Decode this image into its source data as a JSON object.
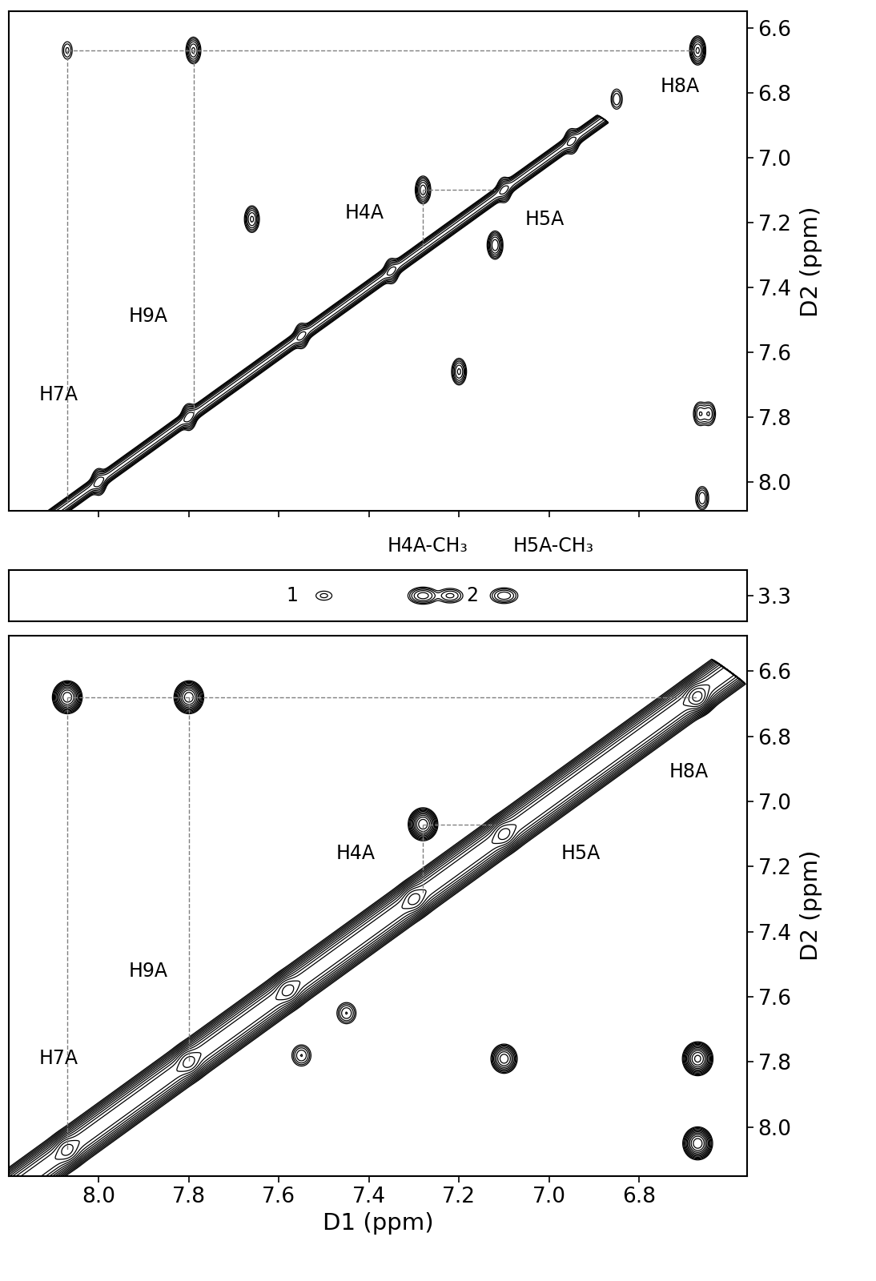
{
  "chart_data": [
    {
      "type": "contour",
      "xlim": [
        8.2,
        6.56
      ],
      "ylim": [
        8.09,
        6.55
      ],
      "xticks": [
        8.0,
        7.8,
        7.6,
        7.4,
        7.2,
        7.0,
        6.8
      ],
      "yticks": [
        6.6,
        6.8,
        7.0,
        7.2,
        7.4,
        7.6,
        7.8,
        8.0
      ],
      "y_label": "D2 (ppm)",
      "tick_labels": "y",
      "diagonal": {
        "range": [
          6.88,
          8.25
        ],
        "intensity": 1.0
      },
      "peaks": [
        {
          "x": 8.07,
          "y": 6.67,
          "intensity": 0.3
        },
        {
          "x": 7.79,
          "y": 6.67,
          "intensity": 1.0
        },
        {
          "x": 6.67,
          "y": 6.67,
          "intensity": 1.5
        },
        {
          "x": 6.85,
          "y": 6.82,
          "intensity": 0.4
        },
        {
          "x": 7.28,
          "y": 7.1,
          "intensity": 1.2
        },
        {
          "x": 7.12,
          "y": 7.27,
          "intensity": 1.3
        },
        {
          "x": 7.66,
          "y": 7.19,
          "intensity": 1.0
        },
        {
          "x": 7.2,
          "y": 7.66,
          "intensity": 1.0
        },
        {
          "x": 6.665,
          "y": 7.79,
          "intensity": 0.6
        },
        {
          "x": 6.645,
          "y": 7.79,
          "intensity": 0.6
        },
        {
          "x": 6.66,
          "y": 8.05,
          "intensity": 0.6
        },
        {
          "x": 8.0,
          "y": 8.0,
          "intensity": 1.0
        },
        {
          "x": 7.8,
          "y": 7.8,
          "intensity": 1.0
        },
        {
          "x": 7.55,
          "y": 7.55,
          "intensity": 0.8
        },
        {
          "x": 7.35,
          "y": 7.35,
          "intensity": 0.8
        },
        {
          "x": 7.1,
          "y": 7.1,
          "intensity": 0.8
        },
        {
          "x": 6.95,
          "y": 6.95,
          "intensity": 0.8
        }
      ],
      "lines": [
        {
          "x": [
            8.07,
            6.67
          ],
          "y": [
            6.67,
            6.67
          ],
          "color": "#808080",
          "line_style": "dashed"
        },
        {
          "x": [
            8.07,
            8.07
          ],
          "y": [
            6.67,
            8.07
          ],
          "color": "#808080",
          "line_style": "dashed"
        },
        {
          "x": [
            7.79,
            7.79
          ],
          "y": [
            6.67,
            7.79
          ],
          "color": "#808080",
          "line_style": "dashed"
        },
        {
          "x": [
            7.28,
            7.12
          ],
          "y": [
            7.1,
            7.1
          ],
          "color": "#808080",
          "line_style": "dashed"
        },
        {
          "x": [
            7.28,
            7.28
          ],
          "y": [
            7.1,
            7.28
          ],
          "color": "#808080",
          "line_style": "dashed"
        }
      ],
      "annotations": [
        {
          "text": "H8A",
          "x": 6.71,
          "y": 6.78
        },
        {
          "text": "H4A",
          "x": 7.41,
          "y": 7.17
        },
        {
          "text": "H5A",
          "x": 7.01,
          "y": 7.19
        },
        {
          "text": "H9A",
          "x": 7.89,
          "y": 7.49
        },
        {
          "text": "H7A",
          "x": 8.09,
          "y": 7.73
        }
      ]
    },
    {
      "type": "contour",
      "xlim": [
        8.2,
        6.56
      ],
      "ylim": [
        3.34,
        3.26
      ],
      "yticks": [
        3.3
      ],
      "tick_labels": "y",
      "peaks": [
        {
          "x": 7.5,
          "y": 3.3,
          "intensity": 0.2
        },
        {
          "x": 7.28,
          "y": 3.3,
          "intensity": 1.2
        },
        {
          "x": 7.22,
          "y": 3.3,
          "intensity": 0.6
        },
        {
          "x": 7.1,
          "y": 3.3,
          "intensity": 0.8
        }
      ],
      "annotations": [
        {
          "text": "1",
          "x": 7.57,
          "y": 3.3
        },
        {
          "text": "2",
          "x": 7.17,
          "y": 3.3
        },
        {
          "text": "H4A-CH₃",
          "x": 7.27,
          "y": 3.222
        },
        {
          "text": "H5A-CH₃",
          "x": 6.99,
          "y": 3.222
        }
      ]
    },
    {
      "type": "contour",
      "xlim": [
        8.2,
        6.56
      ],
      "ylim": [
        8.15,
        6.49
      ],
      "xticks": [
        8.0,
        7.8,
        7.6,
        7.4,
        7.2,
        7.0,
        6.8
      ],
      "yticks": [
        6.6,
        6.8,
        7.0,
        7.2,
        7.4,
        7.6,
        7.8,
        8.0
      ],
      "x_label": "D1 (ppm)",
      "y_label": "D2 (ppm)",
      "diagonal": {
        "range": [
          6.6,
          8.25
        ],
        "intensity": 1.0
      },
      "peaks": [
        {
          "x": 8.07,
          "y": 6.68,
          "intensity": 1.0
        },
        {
          "x": 7.8,
          "y": 6.68,
          "intensity": 1.0
        },
        {
          "x": 6.67,
          "y": 6.68,
          "intensity": 1.5
        },
        {
          "x": 7.28,
          "y": 7.07,
          "intensity": 1.0
        },
        {
          "x": 7.1,
          "y": 7.79,
          "intensity": 0.5
        },
        {
          "x": 6.67,
          "y": 7.79,
          "intensity": 1.2
        },
        {
          "x": 6.67,
          "y": 8.05,
          "intensity": 1.0
        },
        {
          "x": 7.45,
          "y": 7.65,
          "intensity": 0.15
        },
        {
          "x": 7.55,
          "y": 7.78,
          "intensity": 0.15
        },
        {
          "x": 8.07,
          "y": 8.07,
          "intensity": 0.8
        },
        {
          "x": 7.8,
          "y": 7.8,
          "intensity": 0.8
        },
        {
          "x": 7.58,
          "y": 7.58,
          "intensity": 0.8
        },
        {
          "x": 7.3,
          "y": 7.3,
          "intensity": 0.8
        },
        {
          "x": 7.1,
          "y": 7.1,
          "intensity": 0.8
        }
      ],
      "lines": [
        {
          "x": [
            8.07,
            6.67
          ],
          "y": [
            6.68,
            6.68
          ],
          "color": "#808080",
          "line_style": "dashed"
        },
        {
          "x": [
            8.07,
            8.07
          ],
          "y": [
            6.68,
            8.07
          ],
          "color": "#808080",
          "line_style": "dashed"
        },
        {
          "x": [
            7.8,
            7.8
          ],
          "y": [
            6.68,
            7.8
          ],
          "color": "#808080",
          "line_style": "dashed"
        },
        {
          "x": [
            7.28,
            7.12
          ],
          "y": [
            7.07,
            7.07
          ],
          "color": "#808080",
          "line_style": "dashed"
        },
        {
          "x": [
            7.28,
            7.28
          ],
          "y": [
            7.07,
            7.28
          ],
          "color": "#808080",
          "line_style": "dashed"
        }
      ],
      "annotations": [
        {
          "text": "H8A",
          "x": 6.69,
          "y": 6.91
        },
        {
          "text": "H4A",
          "x": 7.43,
          "y": 7.16
        },
        {
          "text": "H5A",
          "x": 6.93,
          "y": 7.16
        },
        {
          "text": "H9A",
          "x": 7.89,
          "y": 7.52
        },
        {
          "text": "H7A",
          "x": 8.09,
          "y": 7.79
        }
      ]
    }
  ]
}
